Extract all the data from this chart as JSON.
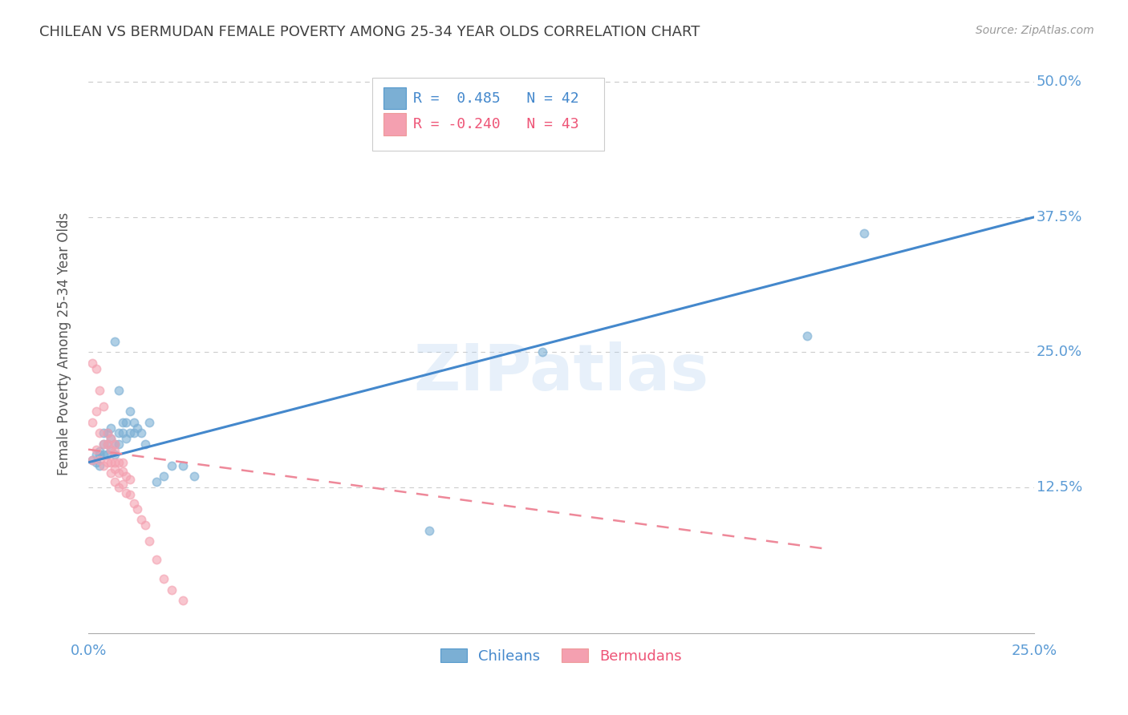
{
  "title": "CHILEAN VS BERMUDAN FEMALE POVERTY AMONG 25-34 YEAR OLDS CORRELATION CHART",
  "source": "Source: ZipAtlas.com",
  "ylabel": "Female Poverty Among 25-34 Year Olds",
  "xlim": [
    0.0,
    0.25
  ],
  "ylim": [
    -0.01,
    0.525
  ],
  "xticks": [
    0.0,
    0.05,
    0.1,
    0.15,
    0.2,
    0.25
  ],
  "xtick_labels": [
    "0.0%",
    "",
    "",
    "",
    "",
    "25.0%"
  ],
  "yticks": [
    0.125,
    0.25,
    0.375,
    0.5
  ],
  "ytick_labels": [
    "12.5%",
    "25.0%",
    "37.5%",
    "50.0%"
  ],
  "blue_color": "#7BAFD4",
  "pink_color": "#F4A0B0",
  "legend_blue_R": " 0.485",
  "legend_blue_N": "42",
  "legend_pink_R": "-0.240",
  "legend_pink_N": "43",
  "legend_labels": [
    "Chileans",
    "Bermudans"
  ],
  "watermark": "ZIPatlas",
  "blue_scatter_x": [
    0.001,
    0.002,
    0.002,
    0.003,
    0.003,
    0.003,
    0.004,
    0.004,
    0.004,
    0.005,
    0.005,
    0.005,
    0.006,
    0.006,
    0.006,
    0.007,
    0.007,
    0.007,
    0.008,
    0.008,
    0.008,
    0.009,
    0.009,
    0.01,
    0.01,
    0.011,
    0.011,
    0.012,
    0.012,
    0.013,
    0.014,
    0.015,
    0.016,
    0.018,
    0.02,
    0.022,
    0.025,
    0.028,
    0.09,
    0.12,
    0.19,
    0.205
  ],
  "blue_scatter_y": [
    0.15,
    0.148,
    0.155,
    0.145,
    0.155,
    0.158,
    0.155,
    0.165,
    0.175,
    0.155,
    0.165,
    0.175,
    0.16,
    0.17,
    0.18,
    0.155,
    0.165,
    0.26,
    0.165,
    0.175,
    0.215,
    0.175,
    0.185,
    0.17,
    0.185,
    0.175,
    0.195,
    0.175,
    0.185,
    0.18,
    0.175,
    0.165,
    0.185,
    0.13,
    0.135,
    0.145,
    0.145,
    0.135,
    0.085,
    0.25,
    0.265,
    0.36
  ],
  "pink_scatter_x": [
    0.001,
    0.001,
    0.001,
    0.002,
    0.002,
    0.002,
    0.003,
    0.003,
    0.003,
    0.004,
    0.004,
    0.004,
    0.005,
    0.005,
    0.005,
    0.006,
    0.006,
    0.006,
    0.006,
    0.007,
    0.007,
    0.007,
    0.007,
    0.007,
    0.008,
    0.008,
    0.008,
    0.009,
    0.009,
    0.009,
    0.01,
    0.01,
    0.011,
    0.011,
    0.012,
    0.013,
    0.014,
    0.015,
    0.016,
    0.018,
    0.02,
    0.022,
    0.025
  ],
  "pink_scatter_y": [
    0.15,
    0.185,
    0.24,
    0.16,
    0.195,
    0.235,
    0.15,
    0.175,
    0.215,
    0.145,
    0.165,
    0.2,
    0.148,
    0.165,
    0.175,
    0.138,
    0.148,
    0.16,
    0.17,
    0.13,
    0.142,
    0.148,
    0.158,
    0.165,
    0.125,
    0.138,
    0.148,
    0.128,
    0.14,
    0.148,
    0.12,
    0.135,
    0.118,
    0.132,
    0.11,
    0.105,
    0.095,
    0.09,
    0.075,
    0.058,
    0.04,
    0.03,
    0.02
  ],
  "blue_trend_x": [
    0.0,
    0.25
  ],
  "blue_trend_y": [
    0.148,
    0.375
  ],
  "pink_trend_x": [
    0.0,
    0.195
  ],
  "pink_trend_y": [
    0.16,
    0.068
  ],
  "background_color": "#FFFFFF",
  "grid_color": "#CCCCCC",
  "text_color": "#5B9BD5",
  "title_color": "#404040"
}
